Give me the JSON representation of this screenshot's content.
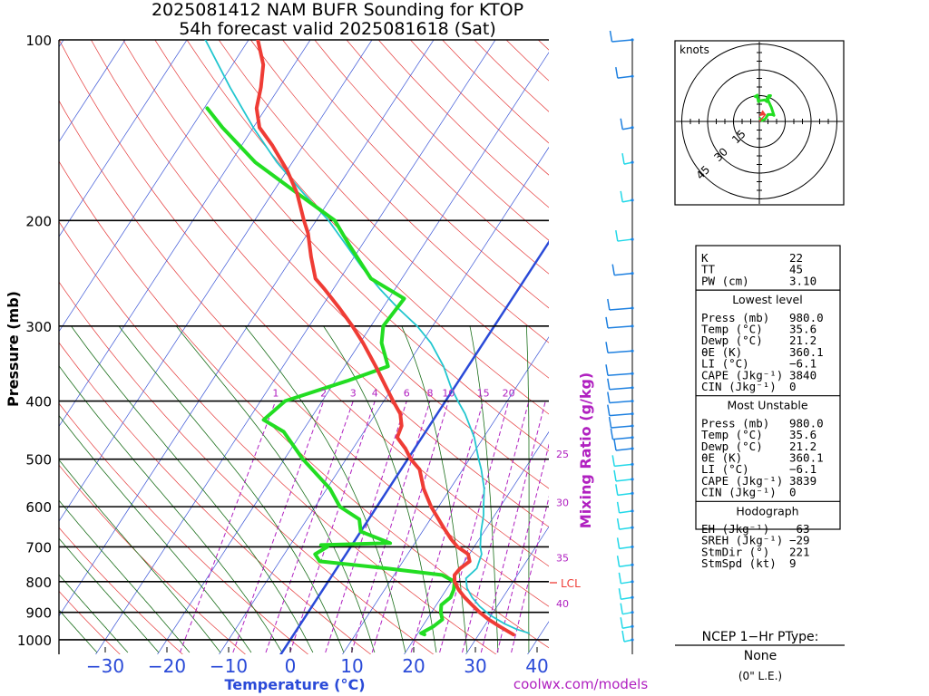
{
  "title": {
    "line1": "2025081412 NAM BUFR Sounding for KTOP",
    "line2": "54h forecast valid 2025081618 (Sat)"
  },
  "footer": {
    "credit": "coolwx.com/models"
  },
  "colors": {
    "temperature": "#ef3c35",
    "dewpoint": "#22dd22",
    "parcel": "#22c6cf",
    "isotherm_zero": "#2a4ad8",
    "dry_adiabat": "#e53a3a",
    "isotherm": "#3b55d6",
    "moist_adiabat": "#1a6e1a",
    "mixing_ratio": "#b020c0",
    "axis_label_blue": "#2a4ad8",
    "axis_label_purple": "#b020c0",
    "wind_blue": "#1e80e0",
    "wind_cyan": "#22d8e8"
  },
  "chart_data": {
    "type": "line",
    "subtype": "skew-t log-p",
    "xlabel": "Temperature (°C)",
    "ylabel": "Pressure (mb)",
    "mixing_ratio_label": "Mixing Ratio (g/kg)",
    "x_ticks": [
      "−30",
      "−20",
      "−10",
      "0",
      "10",
      "20",
      "30",
      "40"
    ],
    "y_ticks": [
      "100",
      "200",
      "300",
      "400",
      "500",
      "600",
      "700",
      "800",
      "900",
      "1000"
    ],
    "pressure_range": [
      1050,
      100
    ],
    "temperature_range_at_bottom": [
      -47.5,
      42.5
    ],
    "mixing_ratio_lines": [
      "1",
      "2",
      "3",
      "4",
      "6",
      "8",
      "10",
      "15",
      "20",
      "25",
      "30",
      "35",
      "40"
    ],
    "lcl_label": "LCL",
    "lcl_pressure": 790,
    "series": [
      {
        "name": "Temperature",
        "points": [
          [
            980,
            35.6
          ],
          [
            950,
            32.5
          ],
          [
            925,
            30
          ],
          [
            900,
            27.8
          ],
          [
            875,
            25.8
          ],
          [
            850,
            23.8
          ],
          [
            825,
            22
          ],
          [
            800,
            20.5
          ],
          [
            780,
            19.8
          ],
          [
            760,
            20
          ],
          [
            740,
            20.8
          ],
          [
            720,
            19.8
          ],
          [
            700,
            17.3
          ],
          [
            680,
            15.5
          ],
          [
            650,
            13
          ],
          [
            600,
            8.8
          ],
          [
            560,
            5.7
          ],
          [
            520,
            3
          ],
          [
            500,
            0.5
          ],
          [
            480,
            -1.5
          ],
          [
            460,
            -4
          ],
          [
            440,
            -4.5
          ],
          [
            420,
            -6
          ],
          [
            400,
            -8.5
          ],
          [
            380,
            -11
          ],
          [
            350,
            -15
          ],
          [
            320,
            -19.5
          ],
          [
            300,
            -23
          ],
          [
            280,
            -27
          ],
          [
            260,
            -31.5
          ],
          [
            250,
            -34
          ],
          [
            230,
            -37
          ],
          [
            210,
            -40
          ],
          [
            200,
            -42
          ],
          [
            180,
            -46
          ],
          [
            165,
            -50
          ],
          [
            150,
            -55
          ],
          [
            140,
            -59
          ],
          [
            130,
            -61.5
          ],
          [
            120,
            -63
          ],
          [
            110,
            -65
          ],
          [
            100,
            -68.5
          ]
        ]
      },
      {
        "name": "Dewpoint",
        "points": [
          [
            980,
            21.2
          ],
          [
            975,
            20.5
          ],
          [
            950,
            21.8
          ],
          [
            925,
            22.5
          ],
          [
            900,
            21.5
          ],
          [
            875,
            20.8
          ],
          [
            850,
            21.5
          ],
          [
            825,
            21.2
          ],
          [
            800,
            20.5
          ],
          [
            780,
            17.8
          ],
          [
            760,
            8
          ],
          [
            740,
            -3.5
          ],
          [
            720,
            -5
          ],
          [
            700,
            -3.8
          ],
          [
            695,
            -5
          ],
          [
            690,
            6
          ],
          [
            660,
            0
          ],
          [
            630,
            -1.5
          ],
          [
            600,
            -6
          ],
          [
            560,
            -9.5
          ],
          [
            500,
            -17
          ],
          [
            450,
            -23
          ],
          [
            430,
            -27.5
          ],
          [
            400,
            -26
          ],
          [
            370,
            -18
          ],
          [
            350,
            -13
          ],
          [
            320,
            -16.5
          ],
          [
            300,
            -18
          ],
          [
            270,
            -17.5
          ],
          [
            250,
            -25
          ],
          [
            220,
            -32
          ],
          [
            200,
            -37
          ],
          [
            180,
            -46
          ],
          [
            160,
            -56
          ],
          [
            140,
            -65
          ],
          [
            130,
            -69.5
          ]
        ]
      },
      {
        "name": "Parcel",
        "points": [
          [
            975,
            38
          ],
          [
            960,
            35.5
          ],
          [
            940,
            33
          ],
          [
            910,
            29.8
          ],
          [
            880,
            27.2
          ],
          [
            850,
            25
          ],
          [
            820,
            23.2
          ],
          [
            790,
            22
          ],
          [
            760,
            22.7
          ],
          [
            720,
            22
          ],
          [
            700,
            21
          ],
          [
            660,
            19.5
          ],
          [
            620,
            18.2
          ],
          [
            600,
            17.3
          ],
          [
            560,
            15.5
          ],
          [
            520,
            13
          ],
          [
            500,
            11.5
          ],
          [
            460,
            8.5
          ],
          [
            420,
            4.5
          ],
          [
            400,
            2
          ],
          [
            380,
            -0.5
          ],
          [
            350,
            -4
          ],
          [
            320,
            -8.5
          ],
          [
            300,
            -12.5
          ],
          [
            280,
            -17.5
          ],
          [
            260,
            -22.5
          ],
          [
            240,
            -27.5
          ],
          [
            220,
            -32.5
          ],
          [
            200,
            -38
          ],
          [
            180,
            -45
          ],
          [
            160,
            -52.5
          ],
          [
            140,
            -60
          ],
          [
            120,
            -68
          ],
          [
            100,
            -77
          ]
        ]
      }
    ]
  },
  "hodograph": {
    "units_label": "knots",
    "ring_labels": [
      "15",
      "30",
      "45"
    ],
    "wind_kt": [
      [
        0,
        2
      ],
      [
        1.5,
        0.5
      ],
      [
        3.5,
        1.5
      ],
      [
        5,
        4
      ],
      [
        7.5,
        4
      ],
      [
        8.5,
        3.5
      ],
      [
        7,
        8
      ],
      [
        4.5,
        13.5
      ],
      [
        5.5,
        15
      ],
      [
        6.5,
        15
      ],
      [
        5,
        13
      ],
      [
        4.5,
        11.5
      ],
      [
        3,
        12.5
      ],
      [
        0,
        12
      ],
      [
        -0.5,
        11.5
      ],
      [
        -1,
        14
      ],
      [
        -2.5,
        14.5
      ],
      [
        -0.5,
        15.5
      ]
    ],
    "storm_motion": [
      3.5,
      4
    ]
  },
  "indices": {
    "rows": [
      {
        "label": "K",
        "value": "22"
      },
      {
        "label": "TT",
        "value": "45"
      },
      {
        "label": "PW (cm)",
        "value": "3.10"
      }
    ],
    "sections": [
      {
        "header": "Lowest level",
        "rows": [
          {
            "label": "Press (mb)",
            "value": "980.0"
          },
          {
            "label": "Temp (°C)",
            "value": "35.6"
          },
          {
            "label": "Dewp (°C)",
            "value": "21.2"
          },
          {
            "label": "θE (K)",
            "value": "360.1"
          },
          {
            "label": "LI (°C)",
            "value": "−6.1"
          },
          {
            "label": "CAPE (Jkg⁻¹)",
            "value": "3840"
          },
          {
            "label": "CIN (Jkg⁻¹)",
            "value": "0"
          }
        ]
      },
      {
        "header": "Most Unstable",
        "rows": [
          {
            "label": "Press (mb)",
            "value": "980.0"
          },
          {
            "label": "Temp (°C)",
            "value": "35.6"
          },
          {
            "label": "Dewp (°C)",
            "value": "21.2"
          },
          {
            "label": "θE (K)",
            "value": "360.1"
          },
          {
            "label": "LI (°C)",
            "value": "−6.1"
          },
          {
            "label": "CAPE (Jkg⁻¹)",
            "value": "3839"
          },
          {
            "label": "CIN (Jkg⁻¹)",
            "value": "0"
          }
        ]
      },
      {
        "header": "Hodograph",
        "rows": [
          {
            "label": "EH (Jkg⁻¹)",
            "value": "−63"
          },
          {
            "label": "SREH (Jkg⁻¹)",
            "value": "−29"
          },
          {
            "label": "StmDir (°)",
            "value": "221"
          },
          {
            "label": "StmSpd (kt)",
            "value": "9"
          }
        ]
      }
    ]
  },
  "ptype": {
    "header": "NCEP 1−Hr PType:",
    "value": "None",
    "note": "(0\" L.E.)"
  }
}
